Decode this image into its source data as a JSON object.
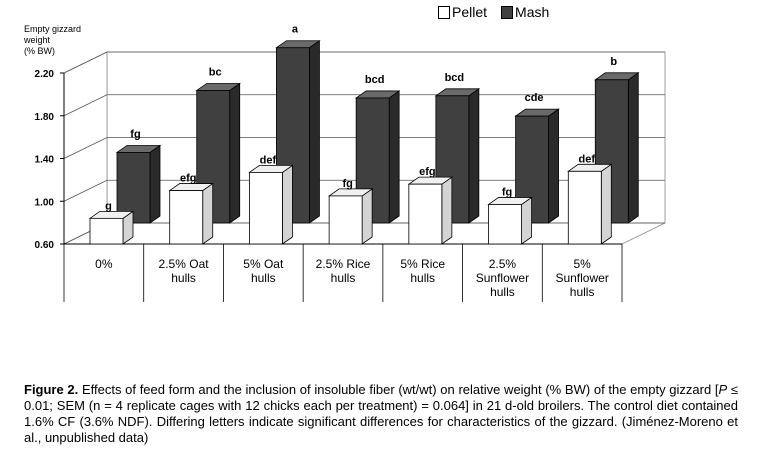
{
  "chart_data": {
    "type": "bar",
    "ylabel_lines": [
      "Empty gizzard",
      "weight",
      "(% BW)"
    ],
    "ylim": [
      0.6,
      2.2
    ],
    "yticks": [
      "0.60",
      "1.00",
      "1.40",
      "1.80",
      "2.20"
    ],
    "categories": [
      [
        "0%"
      ],
      [
        "2.5% Oat",
        "hulls"
      ],
      [
        "5% Oat",
        "hulls"
      ],
      [
        "2.5% Rice",
        "hulls"
      ],
      [
        "5% Rice",
        "hulls"
      ],
      [
        "2.5%",
        "Sunflower",
        "hulls"
      ],
      [
        "5%",
        "Sunflower",
        "hulls"
      ]
    ],
    "series": [
      {
        "name": "Pellet",
        "color": "#ffffff",
        "values": [
          0.84,
          1.1,
          1.27,
          1.05,
          1.16,
          0.97,
          1.28
        ],
        "labels": [
          "g",
          "efg",
          "def",
          "fg",
          "efg",
          "fg",
          "def"
        ]
      },
      {
        "name": "Mash",
        "color": "#404040",
        "values": [
          1.26,
          1.84,
          2.24,
          1.77,
          1.79,
          1.6,
          1.94
        ],
        "labels": [
          "fg",
          "bc",
          "a",
          "bcd",
          "bcd",
          "cde",
          "b"
        ]
      }
    ],
    "legend": "top-right",
    "grid": true
  },
  "caption": {
    "lead": "Figure 2.",
    "text1": " Effects of feed form and the inclusion of insoluble fiber (wt/wt) on relative weight (% BW) of the empty gizzard [",
    "p_italic": "P",
    "text2": " ≤ 0.01; SEM (n = 4 replicate cages with 12 chicks each per treatment) = 0.064] in 21 d-old broilers. The control diet contained 1.6% CF (3.6% NDF). Differing letters indicate significant differences for characteristics of the gizzard. (Jiménez-Moreno et al., unpublished data)"
  }
}
